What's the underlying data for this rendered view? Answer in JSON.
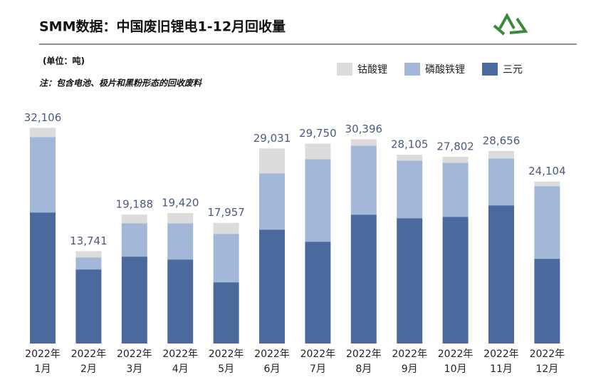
{
  "chart_data": {
    "type": "stacked_bar",
    "title": "SMM数据：中国废旧锂电1-12月回收量",
    "unit": "(单位：吨)",
    "note": "注：包含电池、极片和黑粉形态的回收废料",
    "categories": [
      [
        "2022年",
        "1月"
      ],
      [
        "2022年",
        "2月"
      ],
      [
        "2022年",
        "3月"
      ],
      [
        "2022年",
        "4月"
      ],
      [
        "2022年",
        "5月"
      ],
      [
        "2022年",
        "6月"
      ],
      [
        "2022年",
        "7月"
      ],
      [
        "2022年",
        "8月"
      ],
      [
        "2022年",
        "9月"
      ],
      [
        "2022年",
        "10月"
      ],
      [
        "2022年",
        "11月"
      ],
      [
        "2022年",
        "12月"
      ]
    ],
    "series": [
      {
        "name": "三元",
        "color": "#4a6a9e",
        "values": [
          19500,
          11020,
          12930,
          12500,
          9110,
          16950,
          15150,
          19180,
          18650,
          18860,
          20560,
          12610
        ]
      },
      {
        "name": "磷酸铁锂",
        "color": "#a3b8d8",
        "values": [
          11230,
          1800,
          4980,
          5400,
          7210,
          8370,
          12290,
          10280,
          8580,
          8050,
          6990,
          10810
        ]
      },
      {
        "name": "钴酸锂",
        "color": "#dcdcdc",
        "values": [
          1376,
          921,
          1278,
          1520,
          1637,
          3711,
          2310,
          936,
          875,
          892,
          1106,
          684
        ]
      }
    ],
    "totals": [
      32106,
      13741,
      19188,
      19420,
      17957,
      29031,
      29750,
      30396,
      28105,
      27802,
      28656,
      24104
    ],
    "total_labels": [
      "32,106",
      "13,741",
      "19,188",
      "19,420",
      "17,957",
      "29,031",
      "29,750",
      "30,396",
      "28,105",
      "27,802",
      "28,656",
      "24,104"
    ],
    "ylim": [
      0,
      35000
    ],
    "legend": "top-right"
  }
}
